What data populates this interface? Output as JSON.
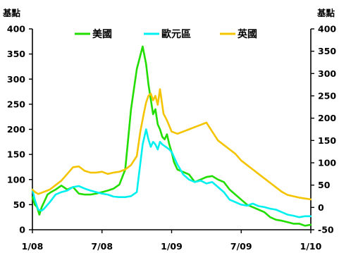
{
  "chart_data": {
    "type": "line",
    "y_unit_left": "基點",
    "y_unit_right": "基點",
    "ylim_left": [
      0,
      400
    ],
    "ylim_right": [
      -50,
      400
    ],
    "y_ticks_left": [
      "0",
      "50",
      "100",
      "150",
      "200",
      "250",
      "300",
      "350",
      "400"
    ],
    "y_ticks_right": [
      "-50",
      "0",
      "50",
      "100",
      "150",
      "200",
      "250",
      "300",
      "350",
      "400"
    ],
    "x_ticks": [
      "1/08",
      "7/08",
      "1/09",
      "7/09",
      "1/10"
    ],
    "xlim": [
      0,
      24
    ],
    "legend": {
      "position": "top",
      "entries": [
        "美國",
        "歐元區",
        "英國"
      ]
    },
    "series": [
      {
        "name": "美國",
        "color": "#22dd00",
        "axis": "left",
        "x": [
          0,
          0.2,
          0.4,
          0.6,
          0.8,
          1.0,
          1.3,
          1.6,
          2.0,
          2.5,
          3.0,
          3.5,
          4.0,
          4.5,
          5.0,
          5.5,
          6.0,
          6.5,
          7.0,
          7.5,
          8.0,
          8.5,
          9.0,
          9.5,
          9.8,
          10.0,
          10.2,
          10.4,
          10.6,
          10.8,
          11.0,
          11.2,
          11.4,
          11.6,
          11.8,
          12.0,
          12.2,
          12.5,
          13.0,
          13.5,
          14.0,
          14.5,
          15.0,
          15.5,
          16.0,
          16.5,
          17.0,
          17.5,
          18.0,
          18.5,
          19.0,
          19.5,
          20.0,
          20.5,
          21.0,
          21.5,
          22.0,
          22.5,
          23.0,
          23.5,
          24.0
        ],
        "values": [
          65,
          50,
          45,
          30,
          45,
          55,
          70,
          75,
          80,
          88,
          80,
          85,
          72,
          70,
          70,
          72,
          75,
          78,
          82,
          90,
          120,
          240,
          320,
          365,
          330,
          290,
          260,
          230,
          240,
          210,
          200,
          185,
          180,
          190,
          170,
          155,
          135,
          120,
          115,
          110,
          95,
          100,
          105,
          107,
          100,
          95,
          80,
          70,
          60,
          50,
          45,
          40,
          35,
          25,
          20,
          18,
          15,
          12,
          12,
          8,
          10
        ]
      },
      {
        "name": "歐元區",
        "color": "#00f0f0",
        "axis": "left",
        "x": [
          0,
          0.2,
          0.5,
          0.8,
          1.0,
          1.5,
          2.0,
          2.5,
          3.0,
          3.5,
          4.0,
          4.5,
          5.0,
          5.5,
          6.0,
          6.5,
          7.0,
          7.5,
          8.0,
          8.5,
          9.0,
          9.5,
          9.8,
          10.0,
          10.2,
          10.4,
          10.6,
          10.8,
          11.0,
          11.2,
          11.5,
          11.8,
          12.0,
          12.5,
          13.0,
          13.5,
          14.0,
          14.5,
          15.0,
          15.5,
          16.0,
          16.5,
          17.0,
          17.5,
          18.0,
          18.5,
          19.0,
          19.5,
          20.0,
          20.5,
          21.0,
          21.5,
          22.0,
          22.5,
          23.0,
          23.5,
          24.0
        ],
        "values": [
          80,
          60,
          40,
          38,
          42,
          55,
          70,
          75,
          78,
          85,
          87,
          82,
          78,
          75,
          72,
          70,
          66,
          65,
          65,
          67,
          75,
          170,
          200,
          180,
          165,
          175,
          170,
          160,
          175,
          170,
          165,
          160,
          155,
          130,
          110,
          100,
          95,
          98,
          92,
          95,
          85,
          75,
          60,
          55,
          50,
          48,
          52,
          47,
          45,
          42,
          40,
          35,
          30,
          28,
          25,
          27,
          27
        ]
      },
      {
        "name": "英國",
        "color": "#f5c400",
        "axis": "right",
        "x": [
          0,
          0.2,
          0.5,
          1.0,
          1.5,
          2.0,
          2.5,
          3.0,
          3.5,
          4.0,
          4.5,
          5.0,
          5.5,
          6.0,
          6.5,
          7.0,
          7.5,
          8.0,
          8.5,
          9.0,
          9.3,
          9.6,
          9.8,
          10.0,
          10.2,
          10.4,
          10.6,
          10.8,
          11.0,
          11.3,
          11.6,
          12.0,
          12.5,
          13.0,
          13.5,
          14.0,
          14.5,
          15.0,
          15.5,
          16.0,
          16.5,
          17.0,
          17.5,
          18.0,
          18.5,
          19.0,
          19.5,
          20.0,
          20.5,
          21.0,
          21.5,
          22.0,
          22.5,
          23.0,
          23.5,
          24.0
        ],
        "values": [
          40,
          35,
          30,
          35,
          40,
          50,
          60,
          75,
          90,
          92,
          82,
          78,
          78,
          80,
          75,
          78,
          80,
          85,
          95,
          115,
          170,
          210,
          235,
          250,
          255,
          240,
          250,
          230,
          265,
          210,
          195,
          170,
          165,
          170,
          175,
          180,
          185,
          190,
          170,
          150,
          140,
          130,
          120,
          105,
          95,
          85,
          75,
          65,
          55,
          45,
          35,
          28,
          25,
          22,
          20,
          18
        ]
      }
    ]
  }
}
